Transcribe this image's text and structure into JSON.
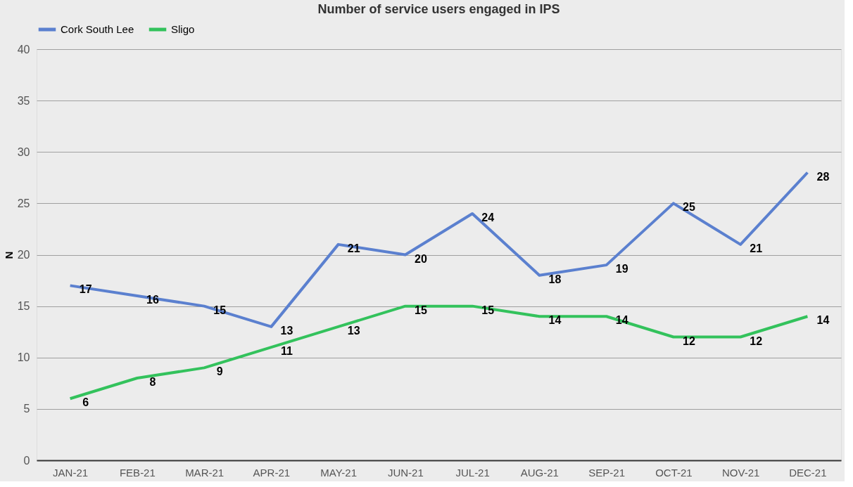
{
  "chart_data": {
    "type": "line",
    "title": "Number of service users engaged in IPS",
    "ylabel": "N",
    "categories": [
      "JAN-21",
      "FEB-21",
      "MAR-21",
      "APR-21",
      "MAY-21",
      "JUN-21",
      "JUL-21",
      "AUG-21",
      "SEP-21",
      "OCT-21",
      "NOV-21",
      "DEC-21"
    ],
    "series": [
      {
        "name": "Cork South Lee",
        "color": "#5b80cf",
        "values": [
          17,
          16,
          15,
          13,
          21,
          20,
          24,
          18,
          19,
          25,
          21,
          28
        ]
      },
      {
        "name": "Sligo",
        "color": "#33c25c",
        "values": [
          6,
          8,
          9,
          11,
          13,
          15,
          15,
          14,
          14,
          12,
          12,
          14
        ]
      }
    ],
    "ylim": [
      0,
      40
    ],
    "yticks": [
      0,
      5,
      10,
      15,
      20,
      25,
      30,
      35,
      40
    ],
    "grid": "y",
    "legend": "top",
    "data_labels": true,
    "marker": "none",
    "line_style": "solid"
  }
}
